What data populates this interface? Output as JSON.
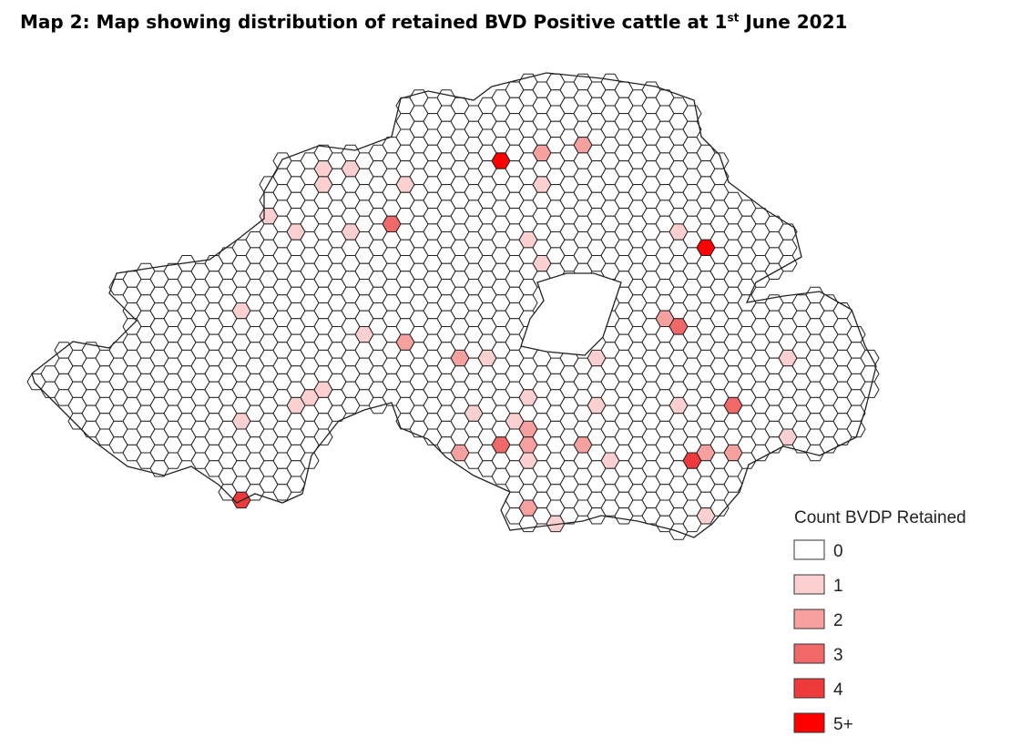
{
  "title": {
    "main": "Map 2: Map showing distribution of retained BVD Positive cattle at 1",
    "sup": "st",
    "end": " June 2021"
  },
  "legend": {
    "title": "Count BVDP Retained",
    "items": [
      {
        "label": "0",
        "color": "#ffffff"
      },
      {
        "label": "1",
        "color": "#fcd0d0"
      },
      {
        "label": "2",
        "color": "#f7a0a0"
      },
      {
        "label": "3",
        "color": "#f06868"
      },
      {
        "label": "4",
        "color": "#ee3a3a"
      },
      {
        "label": "5+",
        "color": "#ff0000"
      }
    ]
  }
}
